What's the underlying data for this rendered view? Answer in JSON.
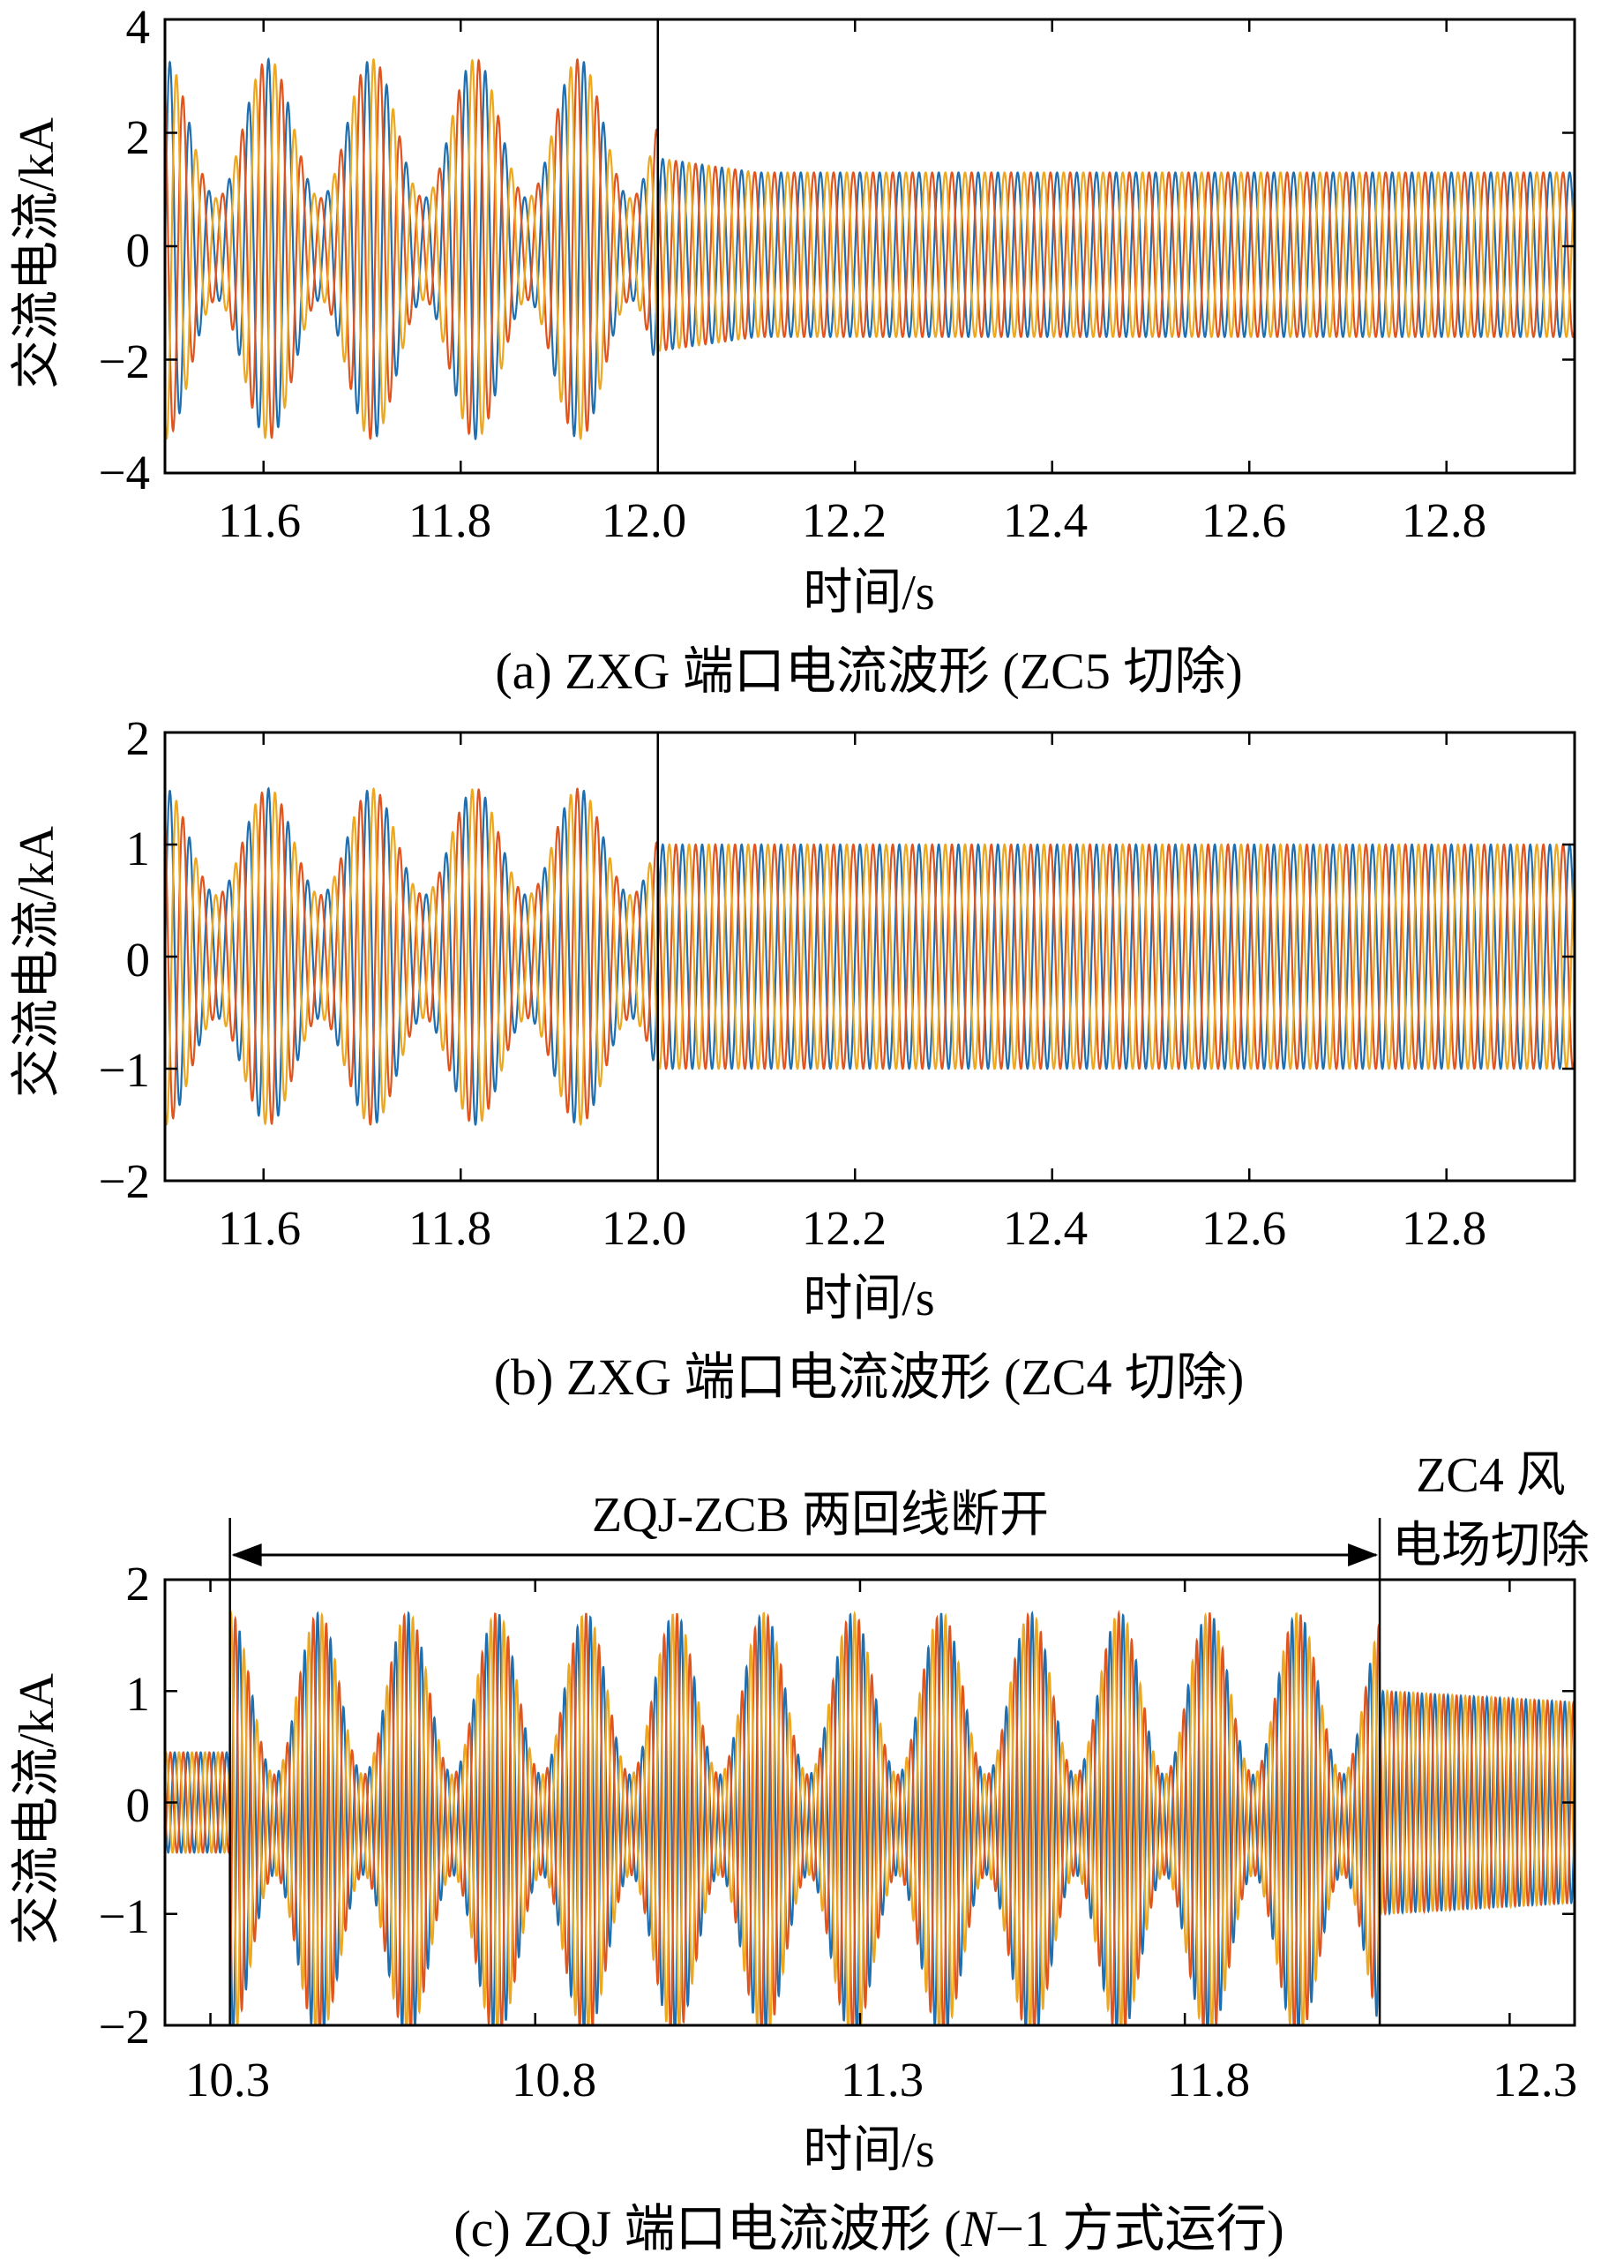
{
  "colors": {
    "phase_a": "#1f6fb0",
    "phase_b": "#e0541e",
    "phase_c": "#eda822"
  },
  "chart_data": [
    {
      "type": "line",
      "caption": "(a)  ZXG 端口电流波形 (ZC5 切除)",
      "xlabel": "时间/s",
      "ylabel": "交流电流/kA",
      "xlim": [
        11.5,
        12.93
      ],
      "ylim": [
        -4,
        4
      ],
      "xticks": [
        "11.6",
        "11.8",
        "12.0",
        "12.2",
        "12.4",
        "12.6",
        "12.8"
      ],
      "xtick_values": [
        11.6,
        11.8,
        12.0,
        12.2,
        12.4,
        12.6,
        12.8
      ],
      "yticks": [
        "4",
        "2",
        "0",
        "−2",
        "−4"
      ],
      "ytick_values": [
        4,
        2,
        0,
        -2,
        -4
      ],
      "event_time": 12.0,
      "series": [
        {
          "phase": "a",
          "color_key": "phase_a"
        },
        {
          "phase": "b",
          "color_key": "phase_b"
        },
        {
          "phase": "c",
          "color_key": "phase_c"
        }
      ],
      "envelope": [
        {
          "t_start": 11.5,
          "t_end": 12.0,
          "peak_max": 3.35,
          "peak_min": 0.9,
          "beat_period": 0.105,
          "center": -0.05
        },
        {
          "t_start": 12.0,
          "t_end": 12.1,
          "peak_start": 1.7,
          "peak_end": 1.45,
          "center": -0.15
        },
        {
          "t_start": 12.1,
          "t_end": 12.93,
          "peak": 1.45,
          "center": -0.15
        }
      ],
      "frequency_hz": 50
    },
    {
      "type": "line",
      "caption": "(b)  ZXG 端口电流波形 (ZC4 切除)",
      "xlabel": "时间/s",
      "ylabel": "交流电流/kA",
      "xlim": [
        11.5,
        12.93
      ],
      "ylim": [
        -2,
        2
      ],
      "xticks": [
        "11.6",
        "11.8",
        "12.0",
        "12.2",
        "12.4",
        "12.6",
        "12.8"
      ],
      "xtick_values": [
        11.6,
        11.8,
        12.0,
        12.2,
        12.4,
        12.6,
        12.8
      ],
      "yticks": [
        "2",
        "1",
        "0",
        "−1",
        "−2"
      ],
      "ytick_values": [
        2,
        1,
        0,
        -1,
        -2
      ],
      "event_time": 12.0,
      "series": [
        {
          "phase": "a",
          "color_key": "phase_a"
        },
        {
          "phase": "b",
          "color_key": "phase_b"
        },
        {
          "phase": "c",
          "color_key": "phase_c"
        }
      ],
      "envelope": [
        {
          "t_start": 11.5,
          "t_end": 12.0,
          "peak_max": 1.5,
          "peak_min": 0.55,
          "beat_period": 0.105,
          "center": 0.0
        },
        {
          "t_start": 12.0,
          "t_end": 12.93,
          "peak": 1.0,
          "center": 0.0
        }
      ],
      "frequency_hz": 50
    },
    {
      "type": "line",
      "caption_prefix": "(c)  ZQJ 端口电流波形 (",
      "caption_italic": "N",
      "caption_suffix": "−1 方式运行)",
      "xlabel": "时间/s",
      "ylabel": "交流电流/kA",
      "xlim": [
        10.23,
        12.4
      ],
      "ylim": [
        -2,
        2
      ],
      "xticks": [
        "10.3",
        "10.8",
        "11.3",
        "11.8",
        "12.3"
      ],
      "xtick_values": [
        10.3,
        10.8,
        11.3,
        11.8,
        12.3
      ],
      "yticks": [
        "2",
        "1",
        "0",
        "−1",
        "−2"
      ],
      "ytick_values": [
        2,
        1,
        0,
        -1,
        -2
      ],
      "event_times": [
        10.33,
        12.1
      ],
      "annotations": {
        "span_label": "ZQJ-ZCB 两回线断开",
        "right_label_line1": "ZC4 风",
        "right_label_line2": "电场切除"
      },
      "series": [
        {
          "phase": "a",
          "color_key": "phase_a"
        },
        {
          "phase": "b",
          "color_key": "phase_b"
        },
        {
          "phase": "c",
          "color_key": "phase_c"
        }
      ],
      "envelope": [
        {
          "t_start": 10.23,
          "t_end": 10.33,
          "peak": 0.45,
          "center": 0.0
        },
        {
          "t_start": 10.33,
          "t_end": 12.1,
          "peak_max": 1.9,
          "peak_min": 0.45,
          "beat_period": 0.137,
          "center": -0.2
        },
        {
          "t_start": 12.1,
          "t_end": 12.4,
          "peak_start": 1.0,
          "peak_end": 0.9,
          "center": 0.0
        }
      ],
      "frequency_hz": 50
    }
  ]
}
